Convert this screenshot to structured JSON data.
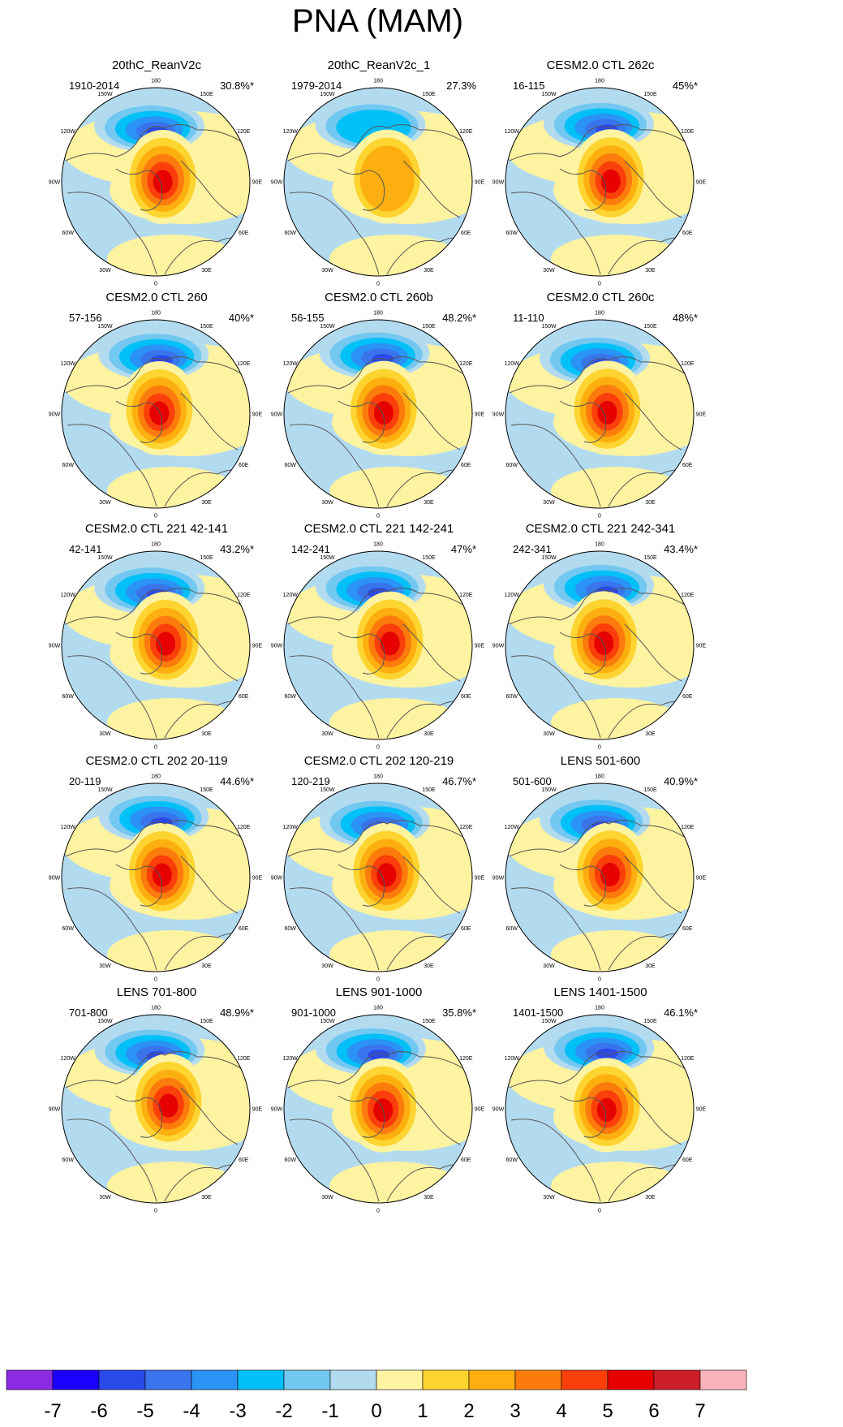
{
  "title": "PNA (MAM)",
  "chart_data": {
    "type": "polar-stereographic contour maps (3 x 5 panel grid)",
    "panels": [
      {
        "title": "20thC_ReanV2c",
        "period": "1910-2014",
        "variance": "30.8%*"
      },
      {
        "title": "20thC_ReanV2c_1",
        "period": "1979-2014",
        "variance": "27.3%"
      },
      {
        "title": "CESM2.0 CTL 262c",
        "period": "16-115",
        "variance": "45%*"
      },
      {
        "title": "CESM2.0 CTL 260",
        "period": "57-156",
        "variance": "40%*"
      },
      {
        "title": "CESM2.0 CTL 260b",
        "period": "56-155",
        "variance": "48.2%*"
      },
      {
        "title": "CESM2.0 CTL 260c",
        "period": "11-110",
        "variance": "48%*"
      },
      {
        "title": "CESM2.0 CTL 221 42-141",
        "period": "42-141",
        "variance": "43.2%*"
      },
      {
        "title": "CESM2.0 CTL 221 142-241",
        "period": "142-241",
        "variance": "47%*"
      },
      {
        "title": "CESM2.0 CTL 221 242-341",
        "period": "242-341",
        "variance": "43.4%*"
      },
      {
        "title": "CESM2.0 CTL 202 20-119",
        "period": "20-119",
        "variance": "44.6%*"
      },
      {
        "title": "CESM2.0 CTL 202 120-219",
        "period": "120-219",
        "variance": "46.7%*"
      },
      {
        "title": "LENS 501-600",
        "period": "501-600",
        "variance": "40.9%*"
      },
      {
        "title": "LENS 701-800",
        "period": "701-800",
        "variance": "48.9%*"
      },
      {
        "title": "LENS 901-1000",
        "period": "901-1000",
        "variance": "35.8%*"
      },
      {
        "title": "LENS 1401-1500",
        "period": "1401-1500",
        "variance": "46.1%*"
      }
    ],
    "longitude_labels": [
      "180",
      "150E",
      "120E",
      "90E",
      "60E",
      "30E",
      "0",
      "30W",
      "60W",
      "90W",
      "120W",
      "150W"
    ],
    "colorbar": {
      "tick_labels": [
        "-7",
        "-6",
        "-5",
        "-4",
        "-3",
        "-2",
        "-1",
        "0",
        "1",
        "2",
        "3",
        "4",
        "5",
        "6",
        "7"
      ],
      "colors": [
        "#8a2be2",
        "#1a00ff",
        "#2a4ae8",
        "#3a74ec",
        "#2a93f5",
        "#00c0f8",
        "#72c8f0",
        "#b3dbf0",
        "#fdf3a0",
        "#fed430",
        "#fdaf10",
        "#fb7c0c",
        "#fa3f0a",
        "#e60000",
        "#cc1f2a",
        "#fbb3ba"
      ]
    }
  }
}
